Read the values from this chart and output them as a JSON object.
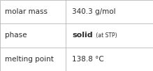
{
  "rows": [
    {
      "label": "molar mass",
      "value": "340.3 g/mol",
      "value_bold": false,
      "value_suffix": ""
    },
    {
      "label": "phase",
      "value": "solid",
      "value_suffix": " (at STP)",
      "value_bold": true
    },
    {
      "label": "melting point",
      "value": "138.8 °C",
      "value_bold": false,
      "value_suffix": ""
    }
  ],
  "background_color": "#ffffff",
  "border_color": "#aaaaaa",
  "text_color": "#2b2b2b",
  "label_fontsize": 7.5,
  "value_fontsize": 7.5,
  "bold_fontsize": 8.0,
  "suffix_fontsize": 5.5,
  "col_split": 0.43,
  "fig_width": 2.19,
  "fig_height": 1.03,
  "dpi": 100
}
